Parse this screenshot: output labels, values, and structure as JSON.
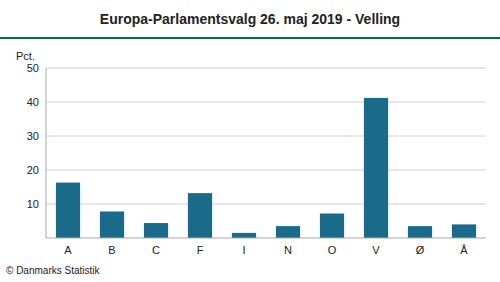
{
  "chart_data": {
    "type": "bar",
    "title": "Europa-Parlamentsvalg 26. maj 2019 - Velling",
    "ylabel": "Pct.",
    "footer": "© Danmarks Statistik",
    "categories": [
      "A",
      "B",
      "C",
      "F",
      "I",
      "N",
      "O",
      "V",
      "Ø",
      "Å"
    ],
    "values": [
      16.3,
      7.8,
      4.4,
      13.2,
      1.5,
      3.5,
      7.2,
      41.2,
      3.5,
      4.0
    ],
    "color": "#1a6b8a",
    "ylim": [
      0,
      50
    ],
    "yticks": [
      10,
      20,
      30,
      40,
      50
    ],
    "grid": true
  }
}
